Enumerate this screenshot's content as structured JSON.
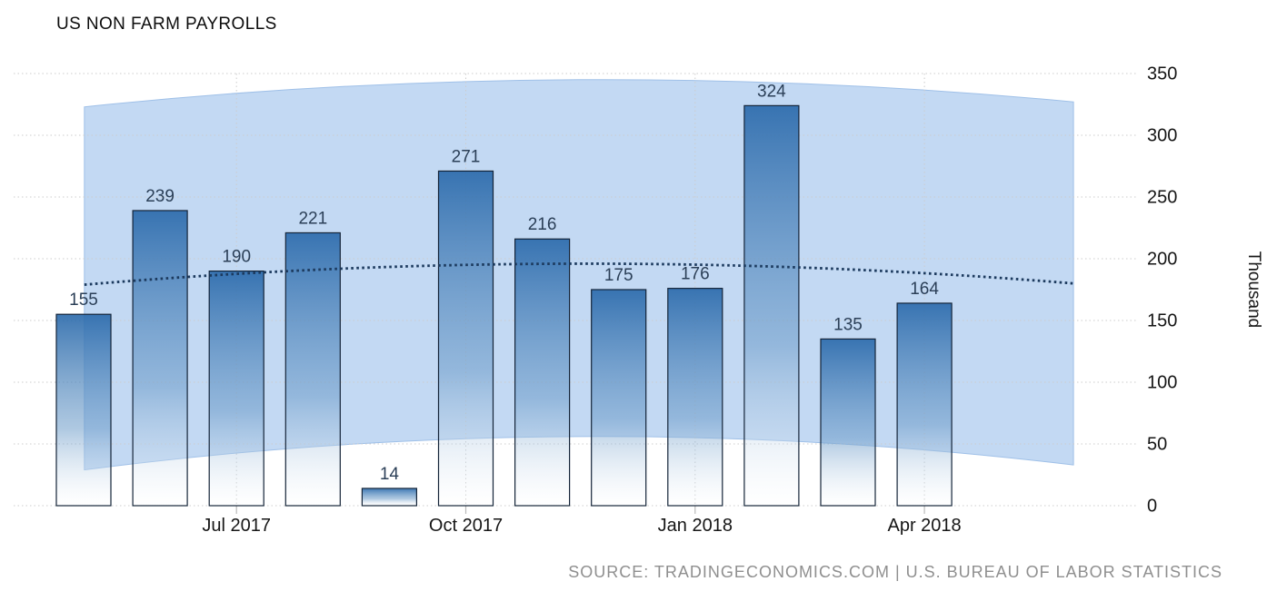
{
  "title": "US NON FARM PAYROLLS",
  "source_note": "SOURCE: TRADINGECONOMICS.COM | U.S. BUREAU OF LABOR STATISTICS",
  "chart_data": {
    "type": "bar",
    "title": "US NON FARM PAYROLLS",
    "xlabel": "",
    "ylabel": "Thousand",
    "ylim": [
      0,
      350
    ],
    "y_ticks": [
      0,
      50,
      100,
      150,
      200,
      250,
      300,
      350
    ],
    "grid": "dotted",
    "legend": "none",
    "values": [
      155,
      239,
      190,
      221,
      14,
      271,
      216,
      175,
      176,
      324,
      135,
      164
    ],
    "bar_value_labels": [
      "155",
      "239",
      "190",
      "221",
      "14",
      "271",
      "216",
      "175",
      "176",
      "324",
      "135",
      "164"
    ],
    "x_tick_labels": [
      {
        "label": "Jul 2017",
        "bar_index": 2
      },
      {
        "label": "Oct 2017",
        "bar_index": 5
      },
      {
        "label": "Jan 2018",
        "bar_index": 8
      },
      {
        "label": "Apr 2018",
        "bar_index": 11
      }
    ],
    "forecast_band": {
      "x_span_bar_units": [
        0.01,
        12.95
      ],
      "upper": [
        323,
        345,
        327
      ],
      "lower": [
        29,
        56,
        33
      ]
    },
    "trend_line": {
      "style": "dotted",
      "x_span_bar_units": [
        0.01,
        12.95
      ],
      "values": [
        179,
        196,
        180
      ]
    }
  },
  "colors": {
    "bar_top": "#2868aa",
    "band_fill": "#c3d9f3",
    "band_edge": "#9fc0e8",
    "trend": "#1c3a5e",
    "value_label": "#2b3f57",
    "axis_text": "#161616",
    "grid": "#cccccc",
    "tick": "#bbbbbb",
    "bar_border": "#142438",
    "source_text": "#8f8f8f"
  }
}
